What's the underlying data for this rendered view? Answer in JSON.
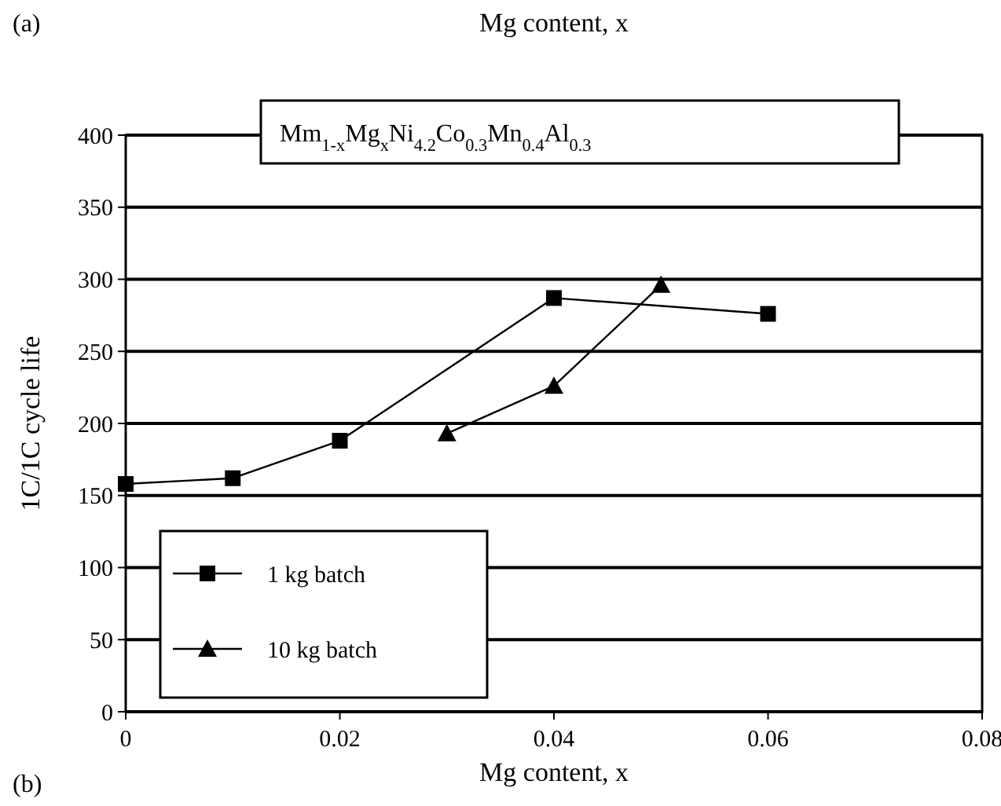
{
  "chart_data": {
    "type": "line",
    "xlabel": "Mg content, x",
    "ylabel": "1C/1C cycle life",
    "annotations": [
      "Mm$_{1-x}$Mg$_{x}$Ni$_{4.2}$Co$_{0.3}$Mn$_{0.4}$Al$_{0.3}$",
      "(a)",
      "Mg content, x",
      "(b)"
    ],
    "series": [
      {
        "name": "1 kg batch",
        "color": "#000000",
        "marker": "square",
        "x": [
          0,
          0.01,
          0.02,
          0.04,
          0.06
        ],
        "values": [
          158,
          162,
          188,
          287,
          276
        ]
      },
      {
        "name": "10 kg batch",
        "color": "#000000",
        "marker": "triangle",
        "x": [
          0.03,
          0.04,
          0.05
        ],
        "values": [
          193,
          226,
          296
        ]
      }
    ],
    "xlim": [
      0,
      0.08
    ],
    "xticks": [
      0,
      0.02,
      0.04,
      0.06,
      0.08
    ],
    "ylim": [
      0,
      400
    ],
    "yticks": [
      0,
      50,
      100,
      150,
      200,
      250,
      300,
      350,
      400
    ],
    "grid": "y",
    "legend": "bottom left",
    "line_style": "solid"
  }
}
